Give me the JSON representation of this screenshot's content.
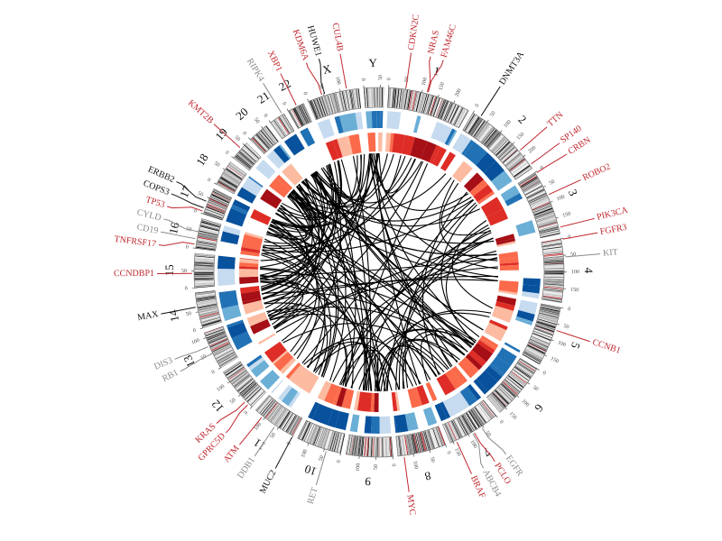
{
  "colors": {
    "gene_highlight": "#c0272d",
    "gene_normal": "#111111",
    "gene_muted": "#8a8a8a",
    "track_blue": [
      "#c6dbef",
      "#6baed6",
      "#2171b5",
      "#08519c"
    ],
    "track_red": [
      "#fcbba1",
      "#fb6a4a",
      "#de2d26",
      "#a50f15"
    ],
    "link": "#000000"
  },
  "chromosomes": [
    {
      "name": "1",
      "length": 249
    },
    {
      "name": "2",
      "length": 243
    },
    {
      "name": "3",
      "length": 198
    },
    {
      "name": "4",
      "length": 191
    },
    {
      "name": "5",
      "length": 181
    },
    {
      "name": "6",
      "length": 171
    },
    {
      "name": "7",
      "length": 159
    },
    {
      "name": "8",
      "length": 146
    },
    {
      "name": "9",
      "length": 141
    },
    {
      "name": "10",
      "length": 136
    },
    {
      "name": "11",
      "length": 135
    },
    {
      "name": "12",
      "length": 134
    },
    {
      "name": "13",
      "length": 115
    },
    {
      "name": "14",
      "length": 107
    },
    {
      "name": "15",
      "length": 103
    },
    {
      "name": "16",
      "length": 90
    },
    {
      "name": "17",
      "length": 81
    },
    {
      "name": "18",
      "length": 78
    },
    {
      "name": "19",
      "length": 59
    },
    {
      "name": "20",
      "length": 63
    },
    {
      "name": "21",
      "length": 48
    },
    {
      "name": "22",
      "length": 51
    },
    {
      "name": "X",
      "length": 155
    },
    {
      "name": "Y",
      "length": 59
    }
  ],
  "tick_step": 50,
  "genes": [
    {
      "name": "CDKN2C",
      "chr": "1",
      "pos": 51,
      "style": "highlight"
    },
    {
      "name": "NRAS",
      "chr": "1",
      "pos": 115,
      "style": "highlight"
    },
    {
      "name": "FAM46C",
      "chr": "1",
      "pos": 118,
      "style": "highlight"
    },
    {
      "name": "DNMT3A",
      "chr": "2",
      "pos": 25,
      "style": "normal"
    },
    {
      "name": "TTN",
      "chr": "2",
      "pos": 179,
      "style": "highlight"
    },
    {
      "name": "SP140",
      "chr": "2",
      "pos": 231,
      "style": "highlight"
    },
    {
      "name": "CRBN",
      "chr": "3",
      "pos": 3,
      "style": "highlight"
    },
    {
      "name": "ROBO2",
      "chr": "3",
      "pos": 77,
      "style": "highlight"
    },
    {
      "name": "PIK3CA",
      "chr": "3",
      "pos": 179,
      "style": "highlight"
    },
    {
      "name": "FGFR3",
      "chr": "4",
      "pos": 2,
      "style": "highlight"
    },
    {
      "name": "KIT",
      "chr": "4",
      "pos": 55,
      "style": "muted"
    },
    {
      "name": "CCNB1",
      "chr": "5",
      "pos": 69,
      "style": "highlight"
    },
    {
      "name": "EGFR",
      "chr": "7",
      "pos": 55,
      "style": "muted"
    },
    {
      "name": "PCLO",
      "chr": "7",
      "pos": 82,
      "style": "highlight"
    },
    {
      "name": "ABCB4",
      "chr": "7",
      "pos": 87,
      "style": "muted"
    },
    {
      "name": "BRAF",
      "chr": "7",
      "pos": 140,
      "style": "highlight"
    },
    {
      "name": "MYC",
      "chr": "8",
      "pos": 128,
      "style": "highlight"
    },
    {
      "name": "RET",
      "chr": "10",
      "pos": 43,
      "style": "muted"
    },
    {
      "name": "MUC2",
      "chr": "11",
      "pos": 1,
      "style": "normal"
    },
    {
      "name": "DDB1",
      "chr": "11",
      "pos": 61,
      "style": "muted"
    },
    {
      "name": "ATM",
      "chr": "11",
      "pos": 108,
      "style": "highlight"
    },
    {
      "name": "GPRC5D",
      "chr": "12",
      "pos": 13,
      "style": "highlight"
    },
    {
      "name": "KRAS",
      "chr": "12",
      "pos": 25,
      "style": "highlight"
    },
    {
      "name": "RB1",
      "chr": "13",
      "pos": 49,
      "style": "muted"
    },
    {
      "name": "DIS3",
      "chr": "13",
      "pos": 73,
      "style": "muted"
    },
    {
      "name": "MAX",
      "chr": "14",
      "pos": 65,
      "style": "normal"
    },
    {
      "name": "CCNDBP1",
      "chr": "15",
      "pos": 43,
      "style": "highlight"
    },
    {
      "name": "TNFRSF17",
      "chr": "16",
      "pos": 12,
      "style": "highlight"
    },
    {
      "name": "CD19",
      "chr": "16",
      "pos": 28,
      "style": "muted"
    },
    {
      "name": "CYLD",
      "chr": "16",
      "pos": 50,
      "style": "muted"
    },
    {
      "name": "TP53",
      "chr": "17",
      "pos": 7,
      "style": "highlight"
    },
    {
      "name": "COPS3",
      "chr": "17",
      "pos": 17,
      "style": "normal"
    },
    {
      "name": "ERBB2",
      "chr": "17",
      "pos": 38,
      "style": "normal"
    },
    {
      "name": "KMT2B",
      "chr": "19",
      "pos": 36,
      "style": "highlight"
    },
    {
      "name": "RIPK4",
      "chr": "21",
      "pos": 43,
      "style": "muted"
    },
    {
      "name": "XBP1",
      "chr": "22",
      "pos": 29,
      "style": "highlight"
    },
    {
      "name": "KDM6A",
      "chr": "X",
      "pos": 44,
      "style": "highlight"
    },
    {
      "name": "HUWE1",
      "chr": "X",
      "pos": 53,
      "style": "normal"
    },
    {
      "name": "CUL4B",
      "chr": "X",
      "pos": 119,
      "style": "highlight"
    }
  ]
}
